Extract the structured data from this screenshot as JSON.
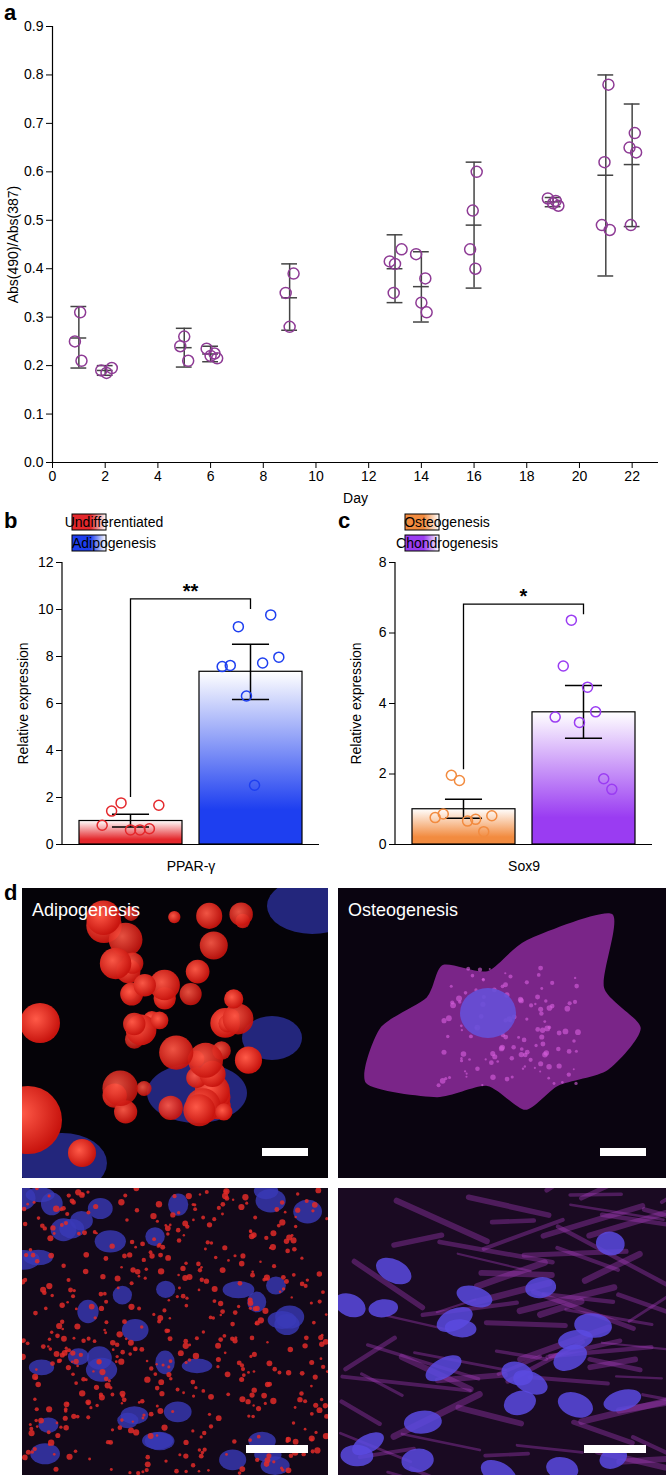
{
  "chart_data": [
    {
      "panel": "a",
      "type": "scatter",
      "x_label": "Day",
      "y_label": "Abs(490)/Abs(387)",
      "xlim": [
        0,
        23
      ],
      "xticks": [
        0,
        2,
        4,
        6,
        8,
        10,
        12,
        14,
        16,
        18,
        20,
        22
      ],
      "ylim": [
        0,
        0.9
      ],
      "yticks": [
        {
          "value": 0,
          "label": "0.0"
        },
        0.1,
        0.2,
        0.3,
        0.4,
        0.5,
        0.6,
        0.7,
        0.8,
        0.9
      ],
      "marker": "open_circle",
      "color": "#8e3b95",
      "x": [
        1.05,
        0.85,
        1.1,
        1.85,
        2.05,
        2.25,
        5.0,
        4.85,
        5.15,
        5.85,
        6.0,
        6.15,
        6.25,
        9.15,
        8.85,
        9.0,
        12.8,
        13.0,
        13.25,
        12.95,
        13.8,
        14.15,
        14.0,
        14.2,
        16.1,
        15.95,
        15.85,
        16.05,
        18.8,
        19.0,
        19.2,
        19.1,
        21.1,
        20.95,
        20.85,
        21.15,
        22.1,
        21.9,
        22.15,
        21.95
      ],
      "values": [
        0.31,
        0.25,
        0.21,
        0.19,
        0.185,
        0.195,
        0.26,
        0.24,
        0.21,
        0.235,
        0.22,
        0.225,
        0.215,
        0.39,
        0.35,
        0.28,
        0.415,
        0.41,
        0.44,
        0.35,
        0.43,
        0.38,
        0.33,
        0.31,
        0.6,
        0.52,
        0.44,
        0.4,
        0.545,
        0.535,
        0.53,
        0.54,
        0.78,
        0.62,
        0.49,
        0.48,
        0.68,
        0.65,
        0.64,
        0.49
      ],
      "error_bars": {
        "x": [
          1,
          2,
          5,
          6,
          9,
          13,
          14,
          16,
          19,
          21,
          22
        ],
        "mean": [
          0.257,
          0.19,
          0.237,
          0.224,
          0.34,
          0.4,
          0.363,
          0.49,
          0.538,
          0.593,
          0.615
        ],
        "low": [
          0.195,
          0.18,
          0.197,
          0.208,
          0.273,
          0.33,
          0.29,
          0.36,
          0.528,
          0.385,
          0.487
        ],
        "high": [
          0.322,
          0.2,
          0.277,
          0.24,
          0.41,
          0.47,
          0.435,
          0.62,
          0.547,
          0.8,
          0.74
        ],
        "color": "#444444"
      }
    },
    {
      "panel": "b",
      "type": "bar",
      "categories": [
        "PPAR-γ"
      ],
      "y_label": "Relative expression",
      "ylim": [
        0,
        12
      ],
      "yticks": [
        0,
        2,
        4,
        6,
        8,
        10,
        12
      ],
      "legend": "top-left",
      "series": [
        {
          "name": "Undifferentiated",
          "color": "#e4282c",
          "values": [
            1.0
          ],
          "error_low": [
            0.72
          ],
          "error_high": [
            1.27
          ],
          "points": [
            [
              0.8,
              1.4,
              1.75,
              0.6,
              0.6,
              0.65,
              1.65
            ]
          ]
        },
        {
          "name": "Adipogenesis",
          "color": "#1e3ff0",
          "values": [
            7.35
          ],
          "error_low": [
            6.15
          ],
          "error_high": [
            8.5
          ],
          "points": [
            [
              7.55,
              7.6,
              9.25,
              6.3,
              2.5,
              7.7,
              9.75,
              7.95
            ]
          ]
        }
      ],
      "annotations": [
        {
          "text": "**",
          "between": [
            "Undifferentiated",
            "Adipogenesis"
          ]
        }
      ]
    },
    {
      "panel": "c",
      "type": "bar",
      "categories": [
        "Sox9"
      ],
      "y_label": "Relative expression",
      "ylim": [
        0,
        8
      ],
      "yticks": [
        0,
        2,
        4,
        6,
        8
      ],
      "legend": "top-left",
      "series": [
        {
          "name": "Osteogenesis",
          "color": "#f28b3f",
          "values": [
            1.0
          ],
          "error_low": [
            0.73
          ],
          "error_high": [
            1.27
          ],
          "points": [
            [
              0.75,
              0.85,
              1.95,
              1.8,
              0.65,
              0.7,
              0.35,
              0.8
            ]
          ]
        },
        {
          "name": "Chondrogenesis",
          "color": "#9a3cf2",
          "values": [
            3.75
          ],
          "error_low": [
            3.0
          ],
          "error_high": [
            4.5
          ],
          "points": [
            [
              3.6,
              5.05,
              6.35,
              3.45,
              4.45,
              3.75,
              1.85,
              1.55
            ]
          ]
        }
      ],
      "annotations": [
        {
          "text": "*",
          "between": [
            "Osteogenesis",
            "Chondrogenesis"
          ]
        }
      ]
    }
  ],
  "panel_d": {
    "panel": "d",
    "labels": [
      "Adipogenesis",
      "Osteogenesis"
    ]
  }
}
